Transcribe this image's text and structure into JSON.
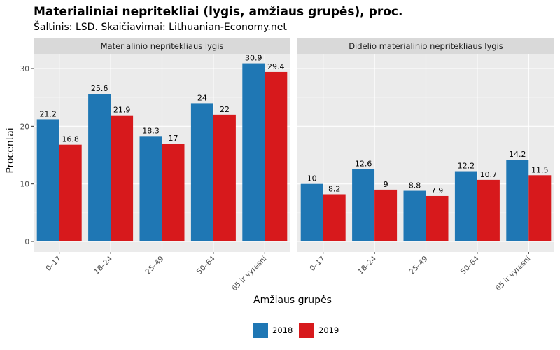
{
  "title": "Materialiniai nepritekliai (lygis, amžiaus grupės), proc.",
  "subtitle": "Šaltinis: LSD. Skaičiavimai: Lithuanian-Economy.net",
  "colors": {
    "2018": "#1f77b4",
    "2019": "#d7191c",
    "panel_bg": "#ebebeb",
    "strip_bg": "#d9d9d9",
    "grid": "#ffffff"
  },
  "chart_data": {
    "type": "bar",
    "xlabel": "Amžiaus grupės",
    "ylabel": "Procentai",
    "ylim": [
      0,
      32
    ],
    "yticks": [
      0,
      10,
      20,
      30
    ],
    "categories": [
      "0–17",
      "18–24",
      "25–49",
      "50–64",
      "65 ir vyresni"
    ],
    "legend": {
      "position": "bottom",
      "entries": [
        "2018",
        "2019"
      ]
    },
    "panels": [
      {
        "title": "Materialinio nepritekliaus lygis",
        "series": [
          {
            "name": "2018",
            "values": [
              21.2,
              25.6,
              18.3,
              24,
              30.9
            ]
          },
          {
            "name": "2019",
            "values": [
              16.8,
              21.9,
              17,
              22,
              29.4
            ]
          }
        ]
      },
      {
        "title": "Didelio materialinio nepritekliaus lygis",
        "series": [
          {
            "name": "2018",
            "values": [
              10,
              12.6,
              8.8,
              12.2,
              14.2
            ]
          },
          {
            "name": "2019",
            "values": [
              8.2,
              9,
              7.9,
              10.7,
              11.5
            ]
          }
        ]
      }
    ]
  }
}
